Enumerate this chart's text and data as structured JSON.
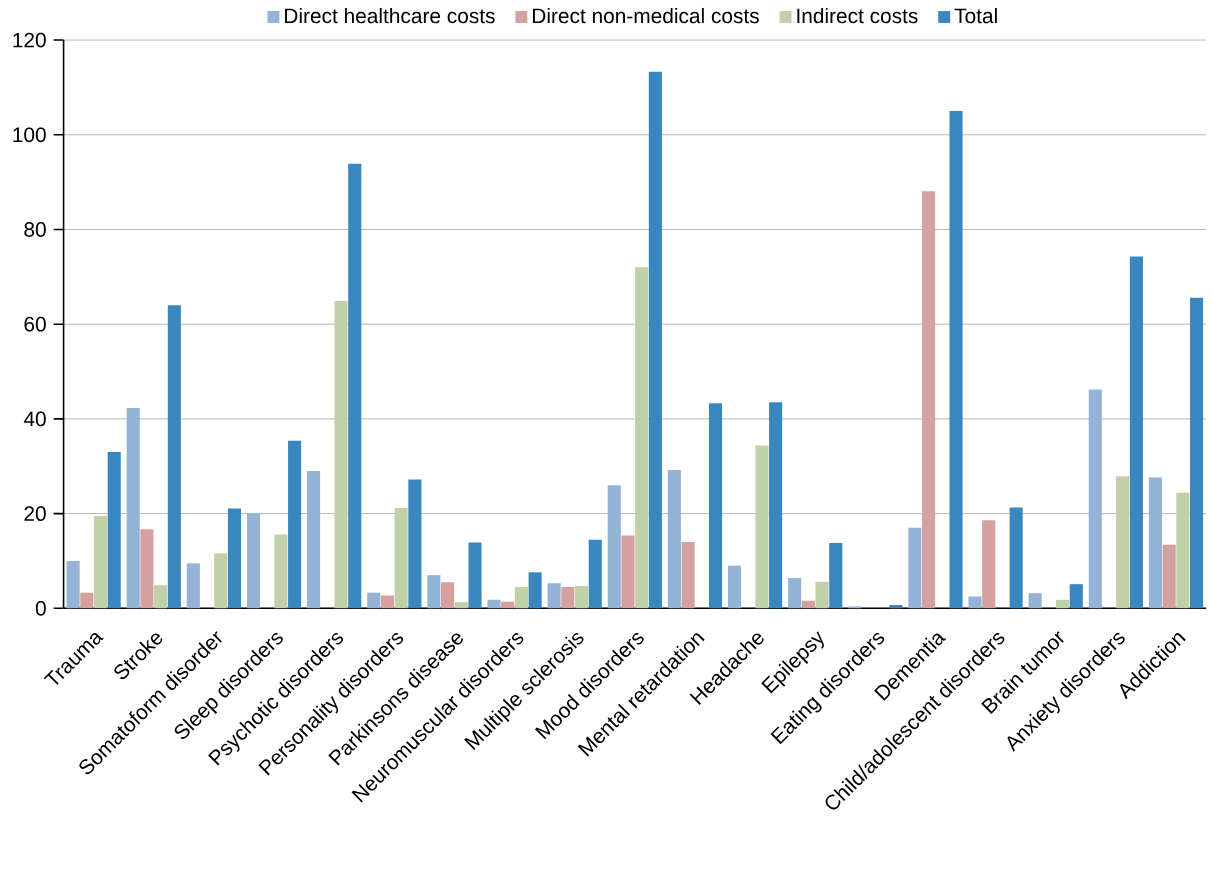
{
  "chart_data": {
    "type": "bar",
    "categories": [
      "Trauma",
      "Stroke",
      "Somatoform disorder",
      "Sleep disorders",
      "Psychotic disorders",
      "Personality disorders",
      "Parkinsons disease",
      "Neuromuscular disorders",
      "Multiple sclerosis",
      "Mood disorders",
      "Mental retardation",
      "Headache",
      "Epilepsy",
      "Eating disorders",
      "Dementia",
      "Child/adolescent disorders",
      "Brain tumor",
      "Anxiety disorders",
      "Addiction"
    ],
    "series": [
      {
        "name": "Direct healthcare costs",
        "color": "#95b3d7",
        "values": [
          10,
          42.3,
          9.5,
          20,
          29,
          3.3,
          7,
          1.8,
          5.3,
          26,
          29.2,
          9,
          6.4,
          0.4,
          17,
          2.5,
          3.2,
          46.2,
          27.6
        ]
      },
      {
        "name": "Direct non-medical costs",
        "color": "#d4a0a0",
        "values": [
          3.3,
          16.7,
          null,
          null,
          null,
          2.7,
          5.5,
          1.4,
          4.5,
          15.4,
          14,
          null,
          1.6,
          null,
          88.1,
          18.6,
          null,
          null,
          13.4
        ]
      },
      {
        "name": "Indirect costs",
        "color": "#c0d0a8",
        "values": [
          19.5,
          4.9,
          11.6,
          15.6,
          64.9,
          21.2,
          1.3,
          4.5,
          4.7,
          72,
          null,
          34.4,
          5.6,
          null,
          null,
          null,
          1.8,
          27.9,
          24.4
        ]
      },
      {
        "name": "Total",
        "color": "#3a87c0",
        "values": [
          33,
          64,
          21.1,
          35.4,
          93.9,
          27.2,
          13.9,
          7.6,
          14.5,
          113.3,
          43.3,
          43.5,
          13.8,
          0.7,
          105,
          21.3,
          5.1,
          74.3,
          65.6
        ]
      }
    ],
    "ylim": [
      0,
      120
    ],
    "yticks": [
      0,
      20,
      40,
      60,
      80,
      100,
      120
    ],
    "grid": "y",
    "legend": "top"
  }
}
